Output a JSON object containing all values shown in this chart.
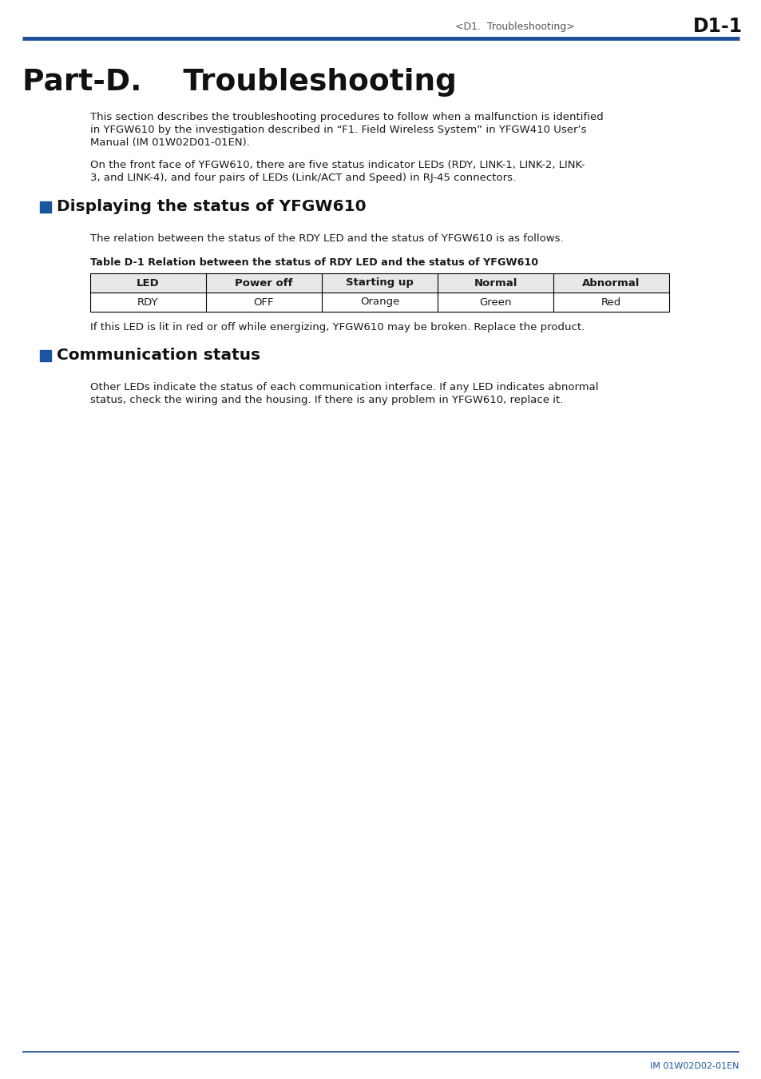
{
  "bg_color": "#ffffff",
  "header_breadcrumb": "<D1.  Troubleshooting>",
  "header_page": "D1-1",
  "header_line_color": "#1f4e99",
  "part_title": "Part-D.    Troubleshooting",
  "para1_line1": "This section describes the troubleshooting procedures to follow when a malfunction is identified",
  "para1_line2": "in YFGW610 by the investigation described in “F1. Field Wireless System” in YFGW410 User’s",
  "para1_line3": "Manual (IM 01W02D01-01EN).",
  "para2_line1": "On the front face of YFGW610, there are five status indicator LEDs (RDY, LINK-1, LINK-2, LINK-",
  "para2_line2": "3, and LINK-4), and four pairs of LEDs (Link/ACT and Speed) in RJ-45 connectors.",
  "section1_title": "Displaying the status of YFGW610",
  "section1_intro": "The relation between the status of the RDY LED and the status of YFGW610 is as follows.",
  "table_caption": "Table D-1 Relation between the status of RDY LED and the status of YFGW610",
  "table_headers": [
    "LED",
    "Power off",
    "Starting up",
    "Normal",
    "Abnormal"
  ],
  "table_row": [
    "RDY",
    "OFF",
    "Orange",
    "Green",
    "Red"
  ],
  "table_border_color": "#000000",
  "para3": "If this LED is lit in red or off while energizing, YFGW610 may be broken. Replace the product.",
  "section2_title": "Communication status",
  "section2_line1": "Other LEDs indicate the status of each communication interface. If any LED indicates abnormal",
  "section2_line2": "status, check the wiring and the housing. If there is any problem in YFGW610, replace it.",
  "footer_text": "IM 01W02D02-01EN",
  "footer_line_color": "#1f4e99",
  "blue_square_color": "#1a56a0",
  "body_text_color": "#1a1a1a",
  "breadcrumb_color": "#555555"
}
